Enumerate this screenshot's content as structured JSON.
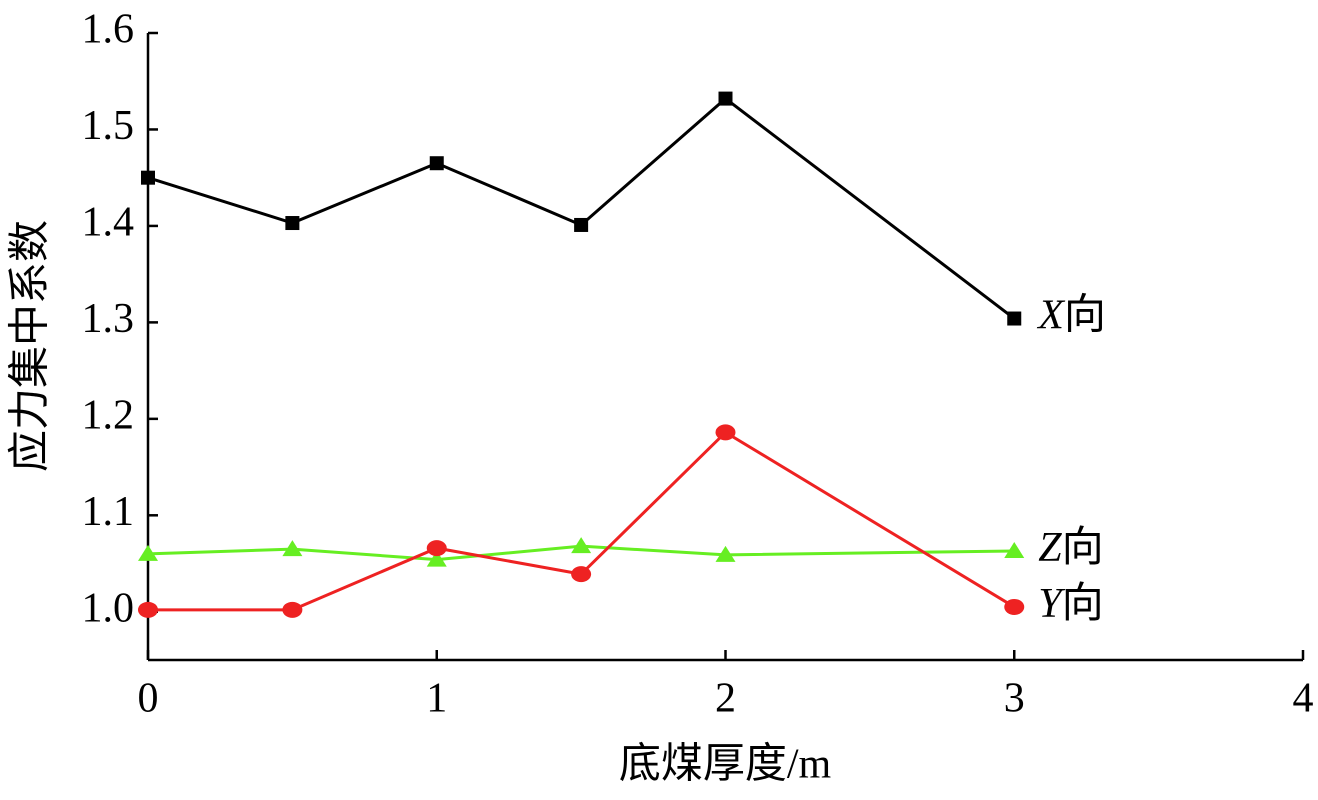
{
  "chart_data": {
    "type": "line",
    "xlabel": "底煤厚度/m",
    "ylabel": "应力集中系数",
    "x": [
      0,
      0.5,
      1,
      1.5,
      2,
      3
    ],
    "series": [
      {
        "name": "X向",
        "color": "#000000",
        "marker": "square",
        "values": [
          1.45,
          1.403,
          1.465,
          1.401,
          1.532,
          1.304
        ]
      },
      {
        "name": "Z向",
        "color": "#66ee22",
        "marker": "triangle",
        "values": [
          1.06,
          1.065,
          1.054,
          1.068,
          1.059,
          1.063
        ]
      },
      {
        "name": "Y向",
        "color": "#ee2222",
        "marker": "circle",
        "values": [
          1.002,
          1.002,
          1.066,
          1.039,
          1.186,
          1.005
        ]
      }
    ],
    "xlim": [
      0,
      4
    ],
    "xticks": [
      0,
      1,
      2,
      3,
      4
    ],
    "ylim": [
      0.95,
      1.6
    ],
    "yticks": [
      {
        "value": 1,
        "label": "1.0"
      },
      1.1,
      1.2,
      1.3,
      1.4,
      1.5,
      1.6
    ]
  }
}
